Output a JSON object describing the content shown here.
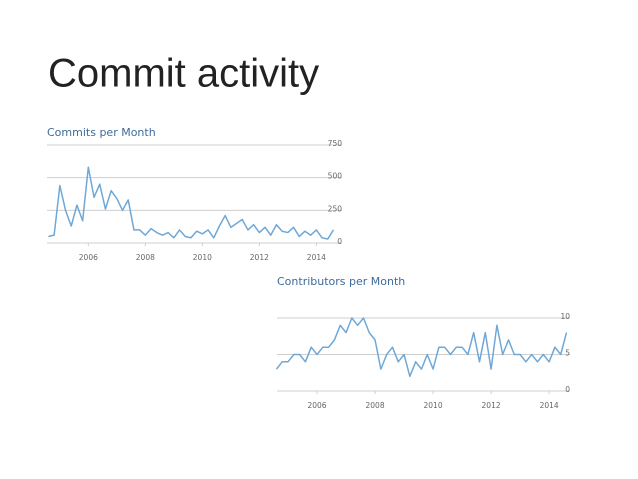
{
  "title": "Commit activity",
  "chart_data": [
    {
      "type": "line",
      "title": "Commits per Month",
      "color": "#6fa8d6",
      "grid": true,
      "x": [
        2004.6,
        2004.8,
        2005.0,
        2005.2,
        2005.4,
        2005.6,
        2005.8,
        2006.0,
        2006.2,
        2006.4,
        2006.6,
        2006.8,
        2007.0,
        2007.2,
        2007.4,
        2007.6,
        2007.8,
        2008.0,
        2008.2,
        2008.4,
        2008.6,
        2008.8,
        2009.0,
        2009.2,
        2009.4,
        2009.6,
        2009.8,
        2010.0,
        2010.2,
        2010.4,
        2010.6,
        2010.8,
        2011.0,
        2011.2,
        2011.4,
        2011.6,
        2011.8,
        2012.0,
        2012.2,
        2012.4,
        2012.6,
        2012.8,
        2013.0,
        2013.2,
        2013.4,
        2013.6,
        2013.8,
        2014.0,
        2014.2,
        2014.4,
        2014.6
      ],
      "values": [
        50,
        60,
        440,
        250,
        130,
        290,
        170,
        580,
        350,
        450,
        260,
        400,
        340,
        250,
        330,
        100,
        100,
        60,
        110,
        80,
        60,
        80,
        40,
        100,
        50,
        40,
        90,
        70,
        100,
        40,
        130,
        210,
        120,
        150,
        180,
        100,
        140,
        80,
        120,
        60,
        140,
        90,
        80,
        120,
        50,
        90,
        60,
        100,
        40,
        30,
        100
      ],
      "xlim": [
        2004.55,
        2014.9
      ],
      "xticks": [
        2006,
        2008,
        2010,
        2012,
        2014
      ],
      "ylim": [
        0,
        750
      ],
      "yticks": [
        0,
        250,
        500,
        750
      ]
    },
    {
      "type": "line",
      "title": "Contributors per Month",
      "color": "#6fa8d6",
      "grid": true,
      "x": [
        2004.6,
        2004.8,
        2005.0,
        2005.2,
        2005.4,
        2005.6,
        2005.8,
        2006.0,
        2006.2,
        2006.4,
        2006.6,
        2006.8,
        2007.0,
        2007.2,
        2007.4,
        2007.6,
        2007.8,
        2008.0,
        2008.2,
        2008.4,
        2008.6,
        2008.8,
        2009.0,
        2009.2,
        2009.4,
        2009.6,
        2009.8,
        2010.0,
        2010.2,
        2010.4,
        2010.6,
        2010.8,
        2011.0,
        2011.2,
        2011.4,
        2011.6,
        2011.8,
        2012.0,
        2012.2,
        2012.4,
        2012.6,
        2012.8,
        2013.0,
        2013.2,
        2013.4,
        2013.6,
        2013.8,
        2014.0,
        2014.2,
        2014.4,
        2014.6
      ],
      "values": [
        3,
        4,
        4,
        5,
        5,
        4,
        6,
        5,
        6,
        6,
        7,
        9,
        8,
        10,
        9,
        10,
        8,
        7,
        3,
        5,
        6,
        4,
        5,
        2,
        4,
        3,
        5,
        3,
        6,
        6,
        5,
        6,
        6,
        5,
        8,
        4,
        8,
        3,
        9,
        5,
        7,
        5,
        5,
        4,
        5,
        4,
        5,
        4,
        6,
        5,
        8
      ],
      "xlim": [
        2004.62,
        2014.72
      ],
      "xticks": [
        2006,
        2008,
        2010,
        2012,
        2014
      ],
      "ylim": [
        0,
        10
      ],
      "yticks": [
        0,
        5,
        10
      ]
    }
  ]
}
